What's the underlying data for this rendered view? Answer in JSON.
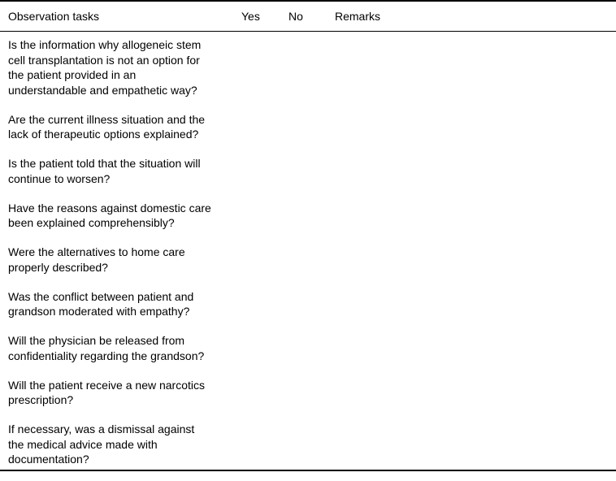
{
  "table": {
    "headers": {
      "task": "Observation tasks",
      "yes": "Yes",
      "no": "No",
      "remarks": "Remarks"
    },
    "rows": [
      "Is the information why allogeneic stem\ncell transplantation is not an option for\nthe patient provided in an\nunderstandable and empathetic way?",
      "Are the current illness situation and the\nlack of therapeutic options explained?",
      "Is the patient told that the situation will\ncontinue to worsen?",
      "Have the reasons against domestic care\nbeen explained comprehensibly?",
      "Were the alternatives to home care\nproperly described?",
      "Was the conflict between patient and\ngrandson moderated with empathy?",
      "Will the physician be released from\nconfidentiality regarding the grandson?",
      "Will the patient receive a new narcotics\nprescription?",
      "If necessary, was a dismissal against\nthe medical advice made with\ndocumentation?"
    ]
  }
}
